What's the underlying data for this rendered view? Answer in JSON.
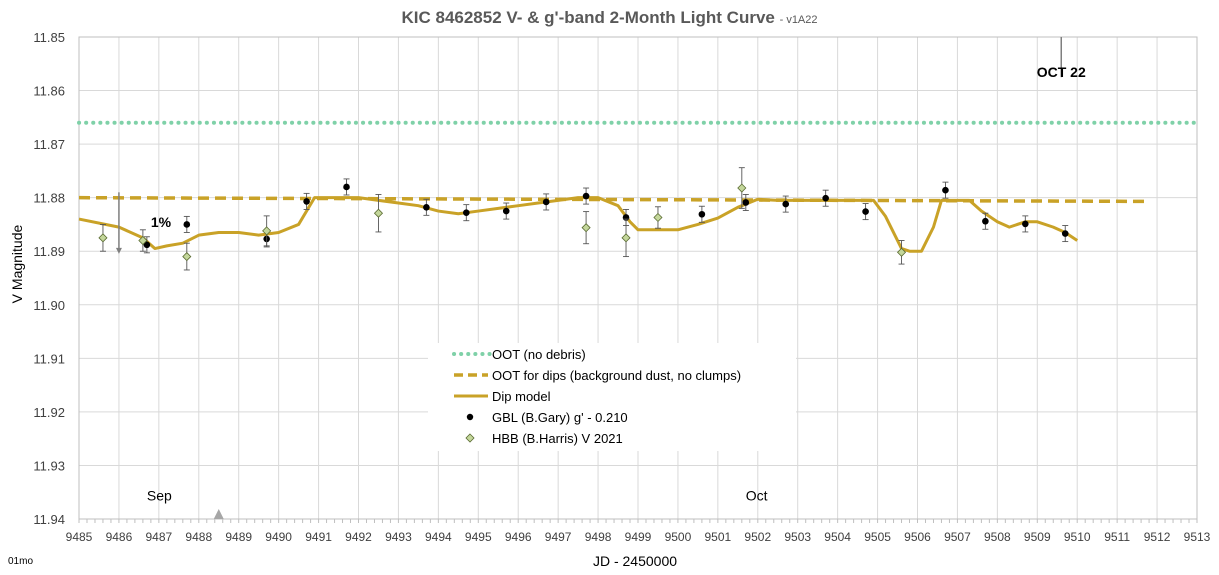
{
  "title": "KIC 8462852 V- & g'-band 2-Month Light Curve",
  "title_version": "- v1A22",
  "ylabel": "V Magnitude",
  "xlabel": "JD - 2450000",
  "corner_label": "01mo",
  "chart_data": {
    "type": "scatter",
    "xlim": [
      9485,
      9513
    ],
    "ylim": [
      11.85,
      11.94
    ],
    "y_inverted": true,
    "grid": true,
    "x_ticks": [
      9485,
      9486,
      9487,
      9488,
      9489,
      9490,
      9491,
      9492,
      9493,
      9494,
      9495,
      9496,
      9497,
      9498,
      9499,
      9500,
      9501,
      9502,
      9503,
      9504,
      9505,
      9506,
      9507,
      9508,
      9509,
      9510,
      9511,
      9512,
      9513
    ],
    "y_ticks": [
      "11.85",
      "11.86",
      "11.87",
      "11.88",
      "11.89",
      "11.90",
      "11.91",
      "11.92",
      "11.93",
      "11.94"
    ],
    "annotations": [
      {
        "text": "OCT 22",
        "x": 9509.6,
        "y": 11.8575
      },
      {
        "text": "1%",
        "x": 9486.8,
        "y": 11.8855
      },
      {
        "text": "Sep",
        "x": 9486.7,
        "y": 11.9365
      },
      {
        "text": "Oct",
        "x": 9501.7,
        "y": 11.9365
      }
    ],
    "markers": {
      "oct22_tick_x": 9509.6,
      "scale_arrow": {
        "x": 9486.0,
        "y_from": 11.879,
        "y_to": 11.8905
      },
      "triangle_x": 9488.5
    },
    "legend": {
      "position": "bottom-center",
      "entries": [
        {
          "label": "OOT (no debris)",
          "style": "dotted",
          "color": "#7fd1a8"
        },
        {
          "label": "OOT for dips (background dust, no clumps)",
          "style": "dashed",
          "color": "#c9a227"
        },
        {
          "label": "Dip model",
          "style": "line",
          "color": "#c9a227"
        },
        {
          "label": "GBL (B.Gary) g' - 0.210",
          "style": "dot",
          "color": "#000000"
        },
        {
          "label": "HBB (B.Harris) V 2021",
          "style": "diamond",
          "color": "#9bbb59"
        }
      ]
    },
    "series": [
      {
        "name": "OOT (no debris)",
        "kind": "dotted-line",
        "color": "#7fd1a8",
        "x": [
          9485,
          9513
        ],
        "y": [
          11.866,
          11.866
        ]
      },
      {
        "name": "OOT for dips (background dust, no clumps)",
        "kind": "dashed-line",
        "color": "#c9a227",
        "x": [
          9485,
          9511.8
        ],
        "y": [
          11.88,
          11.8807
        ]
      },
      {
        "name": "Dip model",
        "kind": "line",
        "color": "#c9a227",
        "x": [
          9485.0,
          9486.0,
          9486.6,
          9486.9,
          9487.2,
          9487.6,
          9488.0,
          9488.5,
          9489.0,
          9489.5,
          9490.0,
          9490.5,
          9490.9,
          9491.5,
          9492.0,
          9492.5,
          9493.0,
          9493.5,
          9494.0,
          9494.5,
          9495.0,
          9495.5,
          9496.0,
          9496.5,
          9497.0,
          9497.5,
          9498.0,
          9498.5,
          9498.8,
          9499.0,
          9499.5,
          9500.0,
          9500.5,
          9501.0,
          9501.5,
          9502.0,
          9502.5,
          9503.0,
          9503.5,
          9504.0,
          9504.5,
          9504.9,
          9505.2,
          9505.6,
          9505.8,
          9506.1,
          9506.4,
          9506.6,
          9507.1,
          9507.3,
          9507.6,
          9508.0,
          9508.3,
          9508.7,
          9509.0,
          9509.4,
          9509.7,
          9510.0
        ],
        "y": [
          11.884,
          11.8855,
          11.8875,
          11.8895,
          11.889,
          11.8885,
          11.887,
          11.8865,
          11.8865,
          11.887,
          11.8865,
          11.885,
          11.88,
          11.88,
          11.88,
          11.8805,
          11.881,
          11.8815,
          11.8825,
          11.883,
          11.8825,
          11.882,
          11.8815,
          11.881,
          11.8805,
          11.88,
          11.88,
          11.8815,
          11.8845,
          11.886,
          11.886,
          11.886,
          11.885,
          11.8838,
          11.8818,
          11.8803,
          11.8805,
          11.8805,
          11.8805,
          11.8805,
          11.8805,
          11.8805,
          11.8835,
          11.8895,
          11.89,
          11.89,
          11.8855,
          11.8805,
          11.8805,
          11.8805,
          11.8825,
          11.8845,
          11.8855,
          11.8845,
          11.8845,
          11.8855,
          11.8865,
          11.888
        ]
      },
      {
        "name": "GBL (B.Gary) g' - 0.210",
        "kind": "points",
        "color": "#000000",
        "x": [
          9486.7,
          9487.7,
          9489.7,
          9490.7,
          9491.7,
          9493.7,
          9494.7,
          9495.7,
          9496.7,
          9497.7,
          9498.7,
          9500.6,
          9501.7,
          9502.7,
          9503.7,
          9504.7,
          9506.7,
          9507.7,
          9508.7,
          9509.7
        ],
        "y": [
          11.8888,
          11.885,
          11.8877,
          11.8807,
          11.878,
          11.8818,
          11.8828,
          11.8825,
          11.8808,
          11.8797,
          11.8837,
          11.8831,
          11.8809,
          11.8812,
          11.8801,
          11.8826,
          11.8786,
          11.8844,
          11.8849,
          11.8867
        ],
        "err": [
          0.0015,
          0.0015,
          0.0015,
          0.0015,
          0.0015,
          0.0015,
          0.0015,
          0.0015,
          0.0015,
          0.0015,
          0.0015,
          0.0015,
          0.0015,
          0.0015,
          0.0015,
          0.0015,
          0.0015,
          0.0015,
          0.0015,
          0.0015
        ]
      },
      {
        "name": "HBB (B.Harris) V 2021",
        "kind": "diamonds",
        "color": "#9bbb59",
        "x": [
          9485.6,
          9486.6,
          9487.7,
          9489.7,
          9492.5,
          9497.7,
          9498.7,
          9499.5,
          9501.6,
          9505.6
        ],
        "y": [
          11.8875,
          11.888,
          11.891,
          11.8862,
          11.8829,
          11.8856,
          11.8875,
          11.8837,
          11.8782,
          11.8902
        ],
        "err": [
          0.0025,
          0.002,
          0.0025,
          0.0028,
          0.0035,
          0.003,
          0.0035,
          0.002,
          0.0038,
          0.0022
        ]
      }
    ]
  }
}
